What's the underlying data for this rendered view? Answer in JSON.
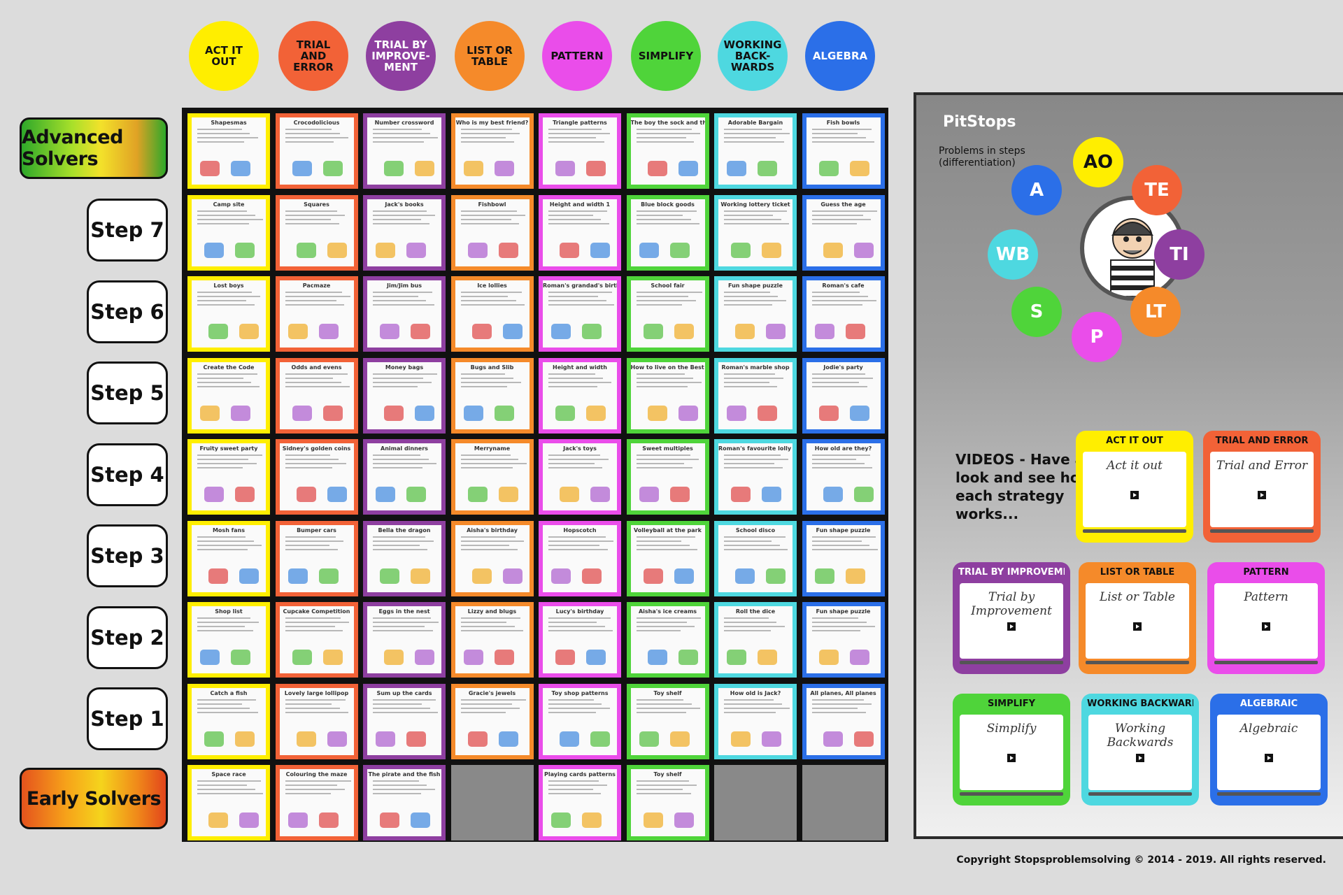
{
  "strategies": [
    {
      "label": "ACT IT OUT",
      "color": "#ffee00",
      "text_color": "#111"
    },
    {
      "label": "TRIAL AND ERROR",
      "color": "#f26237",
      "text_color": "#111"
    },
    {
      "label": "TRIAL BY IMPROVE-MENT",
      "color": "#8e3fa0",
      "text_color": "#fff"
    },
    {
      "label": "LIST OR TABLE",
      "color": "#f58a2a",
      "text_color": "#111"
    },
    {
      "label": "PATTERN",
      "color": "#ea4dea",
      "text_color": "#111"
    },
    {
      "label": "SIMPLIFY",
      "color": "#4fd43a",
      "text_color": "#111"
    },
    {
      "label": "WORKING BACK-WARDS",
      "color": "#4ed8e0",
      "text_color": "#111"
    },
    {
      "label": "ALGEBRA",
      "color": "#2b6fe8",
      "text_color": "#fff"
    }
  ],
  "levels": {
    "advanced": "Advanced Solvers",
    "early": "Early Solvers"
  },
  "steps": [
    "Step 7",
    "Step 6",
    "Step 5",
    "Step 4",
    "Step 3",
    "Step 2",
    "Step 1"
  ],
  "grid": {
    "rows": [
      [
        "Shapesmas",
        "Crocodolicious",
        "Number crossword",
        "Who is my best friend?",
        "Triangle patterns",
        "The boy the sock and the lawnmower",
        "Adorable Bargain",
        "Fish bowls"
      ],
      [
        "Camp site",
        "Squares",
        "Jack's books",
        "Fishbowl",
        "Height and width 1",
        "Blue block goods",
        "Working lottery ticket",
        "Guess the age"
      ],
      [
        "Lost boys",
        "Pacmaze",
        "Jim/Jim bus",
        "Ice lollies",
        "Roman's grandad's birthday",
        "School fair",
        "Fun shape puzzle",
        "Roman's cafe"
      ],
      [
        "Create the Code",
        "Odds and evens",
        "Money bags",
        "Bugs and Slib",
        "Height and width",
        "How to live on the Best Street?",
        "Roman's marble shop",
        "Jodie's party"
      ],
      [
        "Fruity sweet party",
        "Sidney's golden coins",
        "Animal dinners",
        "Merryname",
        "Jack's toys",
        "Sweet multiples",
        "Roman's favourite lolly shop",
        "How old are they?"
      ],
      [
        "Mosh fans",
        "Bumper cars",
        "Bella the dragon",
        "Aisha's birthday",
        "Hopscotch",
        "Volleyball at the park",
        "School disco",
        "Fun shape puzzle"
      ],
      [
        "Shop list",
        "Cupcake Competition",
        "Eggs in the nest",
        "Lizzy and blugs",
        "Lucy's birthday",
        "Aisha's ice creams",
        "Roll the dice",
        "Fun shape puzzle"
      ],
      [
        "Catch a fish",
        "Lovely large lollipop",
        "Sum up the cards",
        "Gracie's jewels",
        "Toy shop patterns",
        "Toy shelf",
        "How old is Jack?",
        "All planes, All planes"
      ],
      [
        "Space race",
        "Colouring the maze",
        "The pirate and the fish",
        "",
        "Playing cards patterns",
        "Toy shelf",
        "",
        ""
      ]
    ]
  },
  "pitstops": {
    "title": "PitStops",
    "subtitle_line1": "Problems in steps",
    "subtitle_line2": "(differentiation)",
    "orbit": [
      {
        "label": "AO",
        "color": "#ffee00",
        "text_color": "#111"
      },
      {
        "label": "TE",
        "color": "#f26237",
        "text_color": "#fff"
      },
      {
        "label": "TI",
        "color": "#8e3fa0",
        "text_color": "#fff"
      },
      {
        "label": "LT",
        "color": "#f58a2a",
        "text_color": "#fff"
      },
      {
        "label": "P",
        "color": "#ea4dea",
        "text_color": "#fff"
      },
      {
        "label": "S",
        "color": "#4fd43a",
        "text_color": "#fff"
      },
      {
        "label": "WB",
        "color": "#4ed8e0",
        "text_color": "#fff"
      },
      {
        "label": "A",
        "color": "#2b6fe8",
        "text_color": "#fff"
      }
    ]
  },
  "videos": {
    "intro_line1": "VIDEOS - Have a",
    "intro_line2": "look and see how",
    "intro_line3": "each strategy",
    "intro_line4": "works...",
    "cards": [
      {
        "label": "ACT IT OUT",
        "script": "Act it out",
        "color": "#ffee00",
        "label_color": "#111"
      },
      {
        "label": "TRIAL AND ERROR",
        "script": "Trial and Error",
        "color": "#f26237",
        "label_color": "#111"
      },
      {
        "label": "TRIAL BY IMPROVEMENT",
        "script": "Trial by Improvement",
        "color": "#8e3fa0",
        "label_color": "#fff"
      },
      {
        "label": "LIST OR TABLE",
        "script": "List or Table",
        "color": "#f58a2a",
        "label_color": "#111"
      },
      {
        "label": "PATTERN",
        "script": "Pattern",
        "color": "#ea4dea",
        "label_color": "#111"
      },
      {
        "label": "SIMPLIFY",
        "script": "Simplify",
        "color": "#4fd43a",
        "label_color": "#111"
      },
      {
        "label": "WORKING BACKWARDS",
        "script": "Working Backwards",
        "color": "#4ed8e0",
        "label_color": "#111"
      },
      {
        "label": "ALGEBRAIC",
        "script": "Algebraic",
        "color": "#2b6fe8",
        "label_color": "#fff"
      }
    ]
  },
  "copyright": "Copyright Stopsproblemsolving © 2014 - 2019. All rights reserved."
}
